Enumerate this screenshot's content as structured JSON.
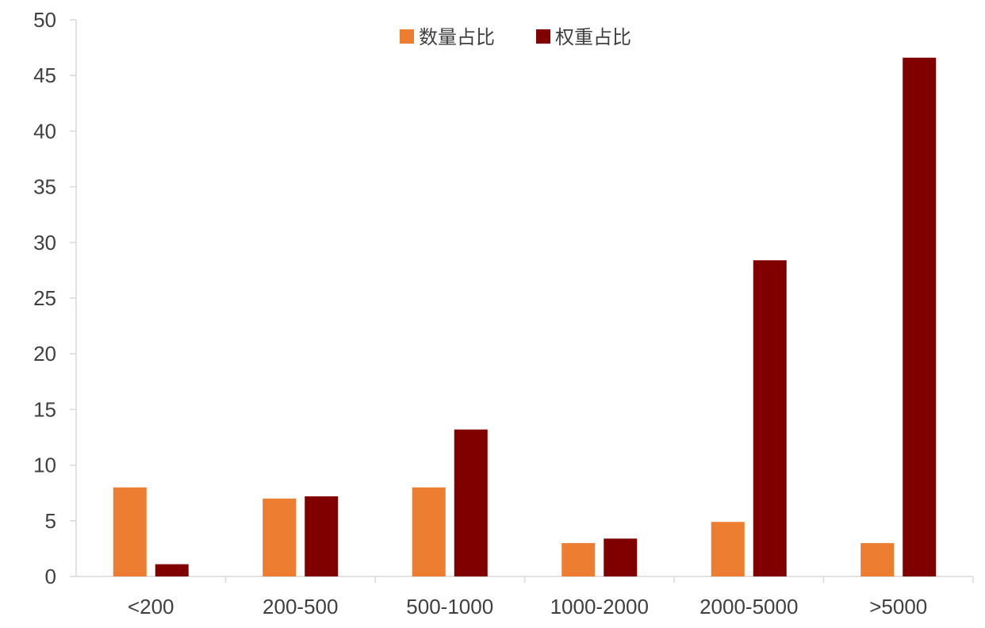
{
  "chart_data": {
    "type": "bar",
    "title": "",
    "xlabel": "",
    "ylabel": "",
    "categories": [
      "<200",
      "200-500",
      "500-1000",
      "1000-2000",
      "2000-5000",
      ">5000"
    ],
    "series": [
      {
        "name": "数量占比",
        "color": "#ED7D31",
        "values": [
          8.0,
          7.0,
          8.0,
          3.0,
          4.9,
          3.0
        ]
      },
      {
        "name": "权重占比",
        "color": "#800000",
        "values": [
          1.1,
          7.2,
          13.2,
          3.4,
          28.4,
          46.6
        ]
      }
    ],
    "ylim": [
      0,
      50
    ],
    "yticks": [
      0,
      5,
      10,
      15,
      20,
      25,
      30,
      35,
      40,
      45,
      50
    ],
    "grid": false,
    "legend_position": "top-center",
    "axis_color": "#D9D9D9",
    "text_color": "#404040"
  }
}
